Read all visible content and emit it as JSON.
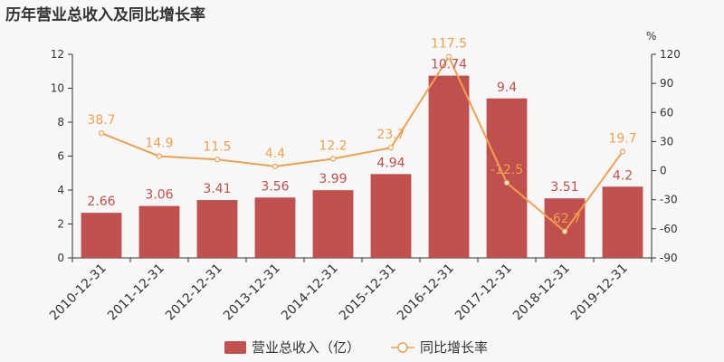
{
  "chart_data": {
    "type": "bar",
    "title": "历年营业总收入及同比增长率",
    "categories": [
      "2010-12-31",
      "2011-12-31",
      "2012-12-31",
      "2013-12-31",
      "2014-12-31",
      "2015-12-31",
      "2016-12-31",
      "2017-12-31",
      "2018-12-31",
      "2019-12-31"
    ],
    "series": [
      {
        "name": "营业总收入（亿）",
        "type": "bar",
        "axis": "left",
        "color": "#c0504d",
        "values": [
          2.66,
          3.06,
          3.41,
          3.56,
          3.99,
          4.94,
          10.74,
          9.4,
          3.51,
          4.2
        ]
      },
      {
        "name": "同比增长率",
        "type": "line",
        "axis": "right",
        "color": "#f0a050",
        "values": [
          38.7,
          14.9,
          11.5,
          4.4,
          12.2,
          23.7,
          117.5,
          -12.5,
          -62.7,
          19.7
        ]
      }
    ],
    "left_axis": {
      "min": 0,
      "max": 12,
      "ticks": [
        0,
        2,
        4,
        6,
        8,
        10,
        12
      ]
    },
    "right_axis": {
      "label": "%",
      "min": -90,
      "max": 120,
      "ticks": [
        -90,
        -60,
        -30,
        0,
        30,
        60,
        90,
        120
      ]
    },
    "grid": false,
    "legend_position": "bottom",
    "bar_label_color": "#c0504d",
    "line_label_color": "#f0a050"
  }
}
